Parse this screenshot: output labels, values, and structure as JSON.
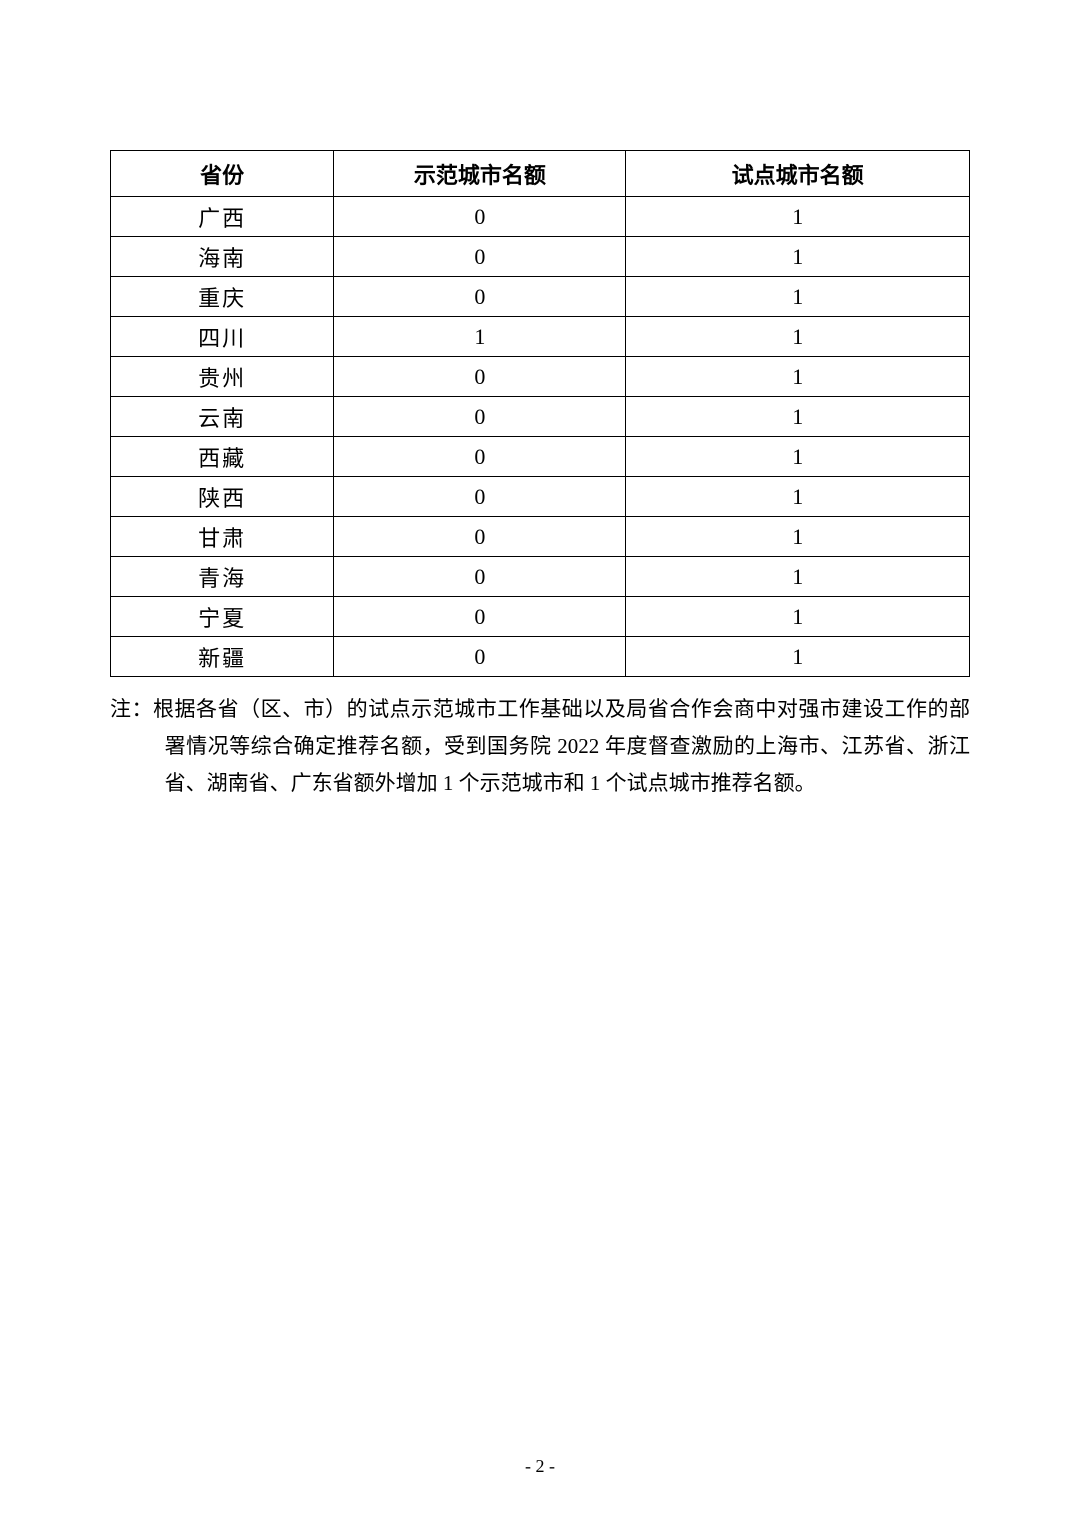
{
  "table": {
    "columns": [
      "省份",
      "示范城市名额",
      "试点城市名额"
    ],
    "col_widths_pct": [
      26,
      34,
      40
    ],
    "header_fontsize": 22,
    "cell_fontsize": 22,
    "border_color": "#000000",
    "rows": [
      {
        "province": "广西",
        "demo": "0",
        "pilot": "1"
      },
      {
        "province": "海南",
        "demo": "0",
        "pilot": "1"
      },
      {
        "province": "重庆",
        "demo": "0",
        "pilot": "1"
      },
      {
        "province": "四川",
        "demo": "1",
        "pilot": "1"
      },
      {
        "province": "贵州",
        "demo": "0",
        "pilot": "1"
      },
      {
        "province": "云南",
        "demo": "0",
        "pilot": "1"
      },
      {
        "province": "西藏",
        "demo": "0",
        "pilot": "1"
      },
      {
        "province": "陕西",
        "demo": "0",
        "pilot": "1"
      },
      {
        "province": "甘肃",
        "demo": "0",
        "pilot": "1"
      },
      {
        "province": "青海",
        "demo": "0",
        "pilot": "1"
      },
      {
        "province": "宁夏",
        "demo": "0",
        "pilot": "1"
      },
      {
        "province": "新疆",
        "demo": "0",
        "pilot": "1"
      }
    ]
  },
  "note": {
    "label": "注：",
    "text": "根据各省（区、市）的试点示范城市工作基础以及局省合作会商中对强市建设工作的部署情况等综合确定推荐名额，受到国务院 2022 年度督查激励的上海市、江苏省、浙江省、湖南省、广东省额外增加 1 个示范城市和 1 个试点城市推荐名额。"
  },
  "page_number": "- 2 -",
  "background_color": "#ffffff",
  "text_color": "#000000"
}
